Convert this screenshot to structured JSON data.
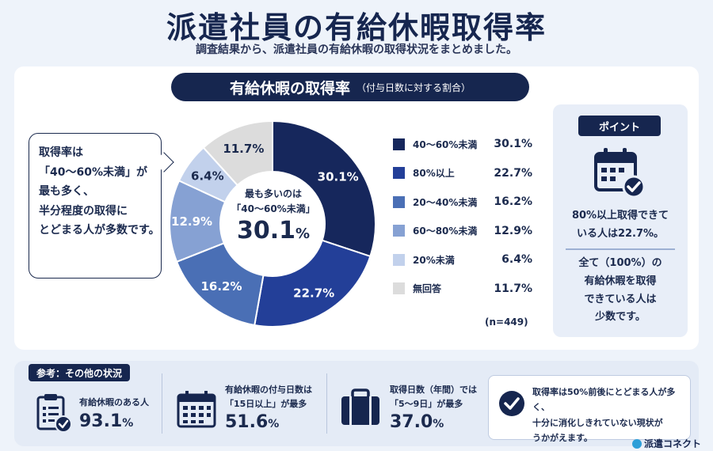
{
  "header": {
    "title": "派遣社員の有給休暇取得率",
    "subtitle": "調査結果から、派遣社員の有給休暇の取得状況をまとめました。"
  },
  "chart_header": {
    "main": "有給休暇の取得率",
    "sub": "（付与日数に対する割合）"
  },
  "bubble": {
    "lines": [
      "取得率は",
      "「40〜60%未満」が",
      "最も多く、",
      "半分程度の取得に",
      "とどまる人が多数です。"
    ]
  },
  "center": {
    "line1": "最も多いのは",
    "line2": "「40〜60%未満」",
    "value": "30.1",
    "unit": "%"
  },
  "chart_data": {
    "type": "pie",
    "donut": true,
    "categories": [
      "40〜60%未満",
      "80%以上",
      "20〜40%未満",
      "60〜80%未満",
      "20%未満",
      "無回答"
    ],
    "values": [
      30.1,
      22.7,
      16.2,
      12.9,
      6.4,
      11.7
    ],
    "labels": [
      "30.1%",
      "22.7%",
      "16.2%",
      "12.9%",
      "6.4%",
      "11.7%"
    ],
    "colors": [
      "#16275c",
      "#233f98",
      "#4a6fb5",
      "#86a1d3",
      "#c2d1ec",
      "#dcdcdc"
    ],
    "label_colors": [
      "#ffffff",
      "#ffffff",
      "#ffffff",
      "#ffffff",
      "#1b2a4e",
      "#1b2a4e"
    ],
    "legend_placement": "right",
    "note": "(n=449)"
  },
  "point": {
    "badge": "ポイント",
    "icon": "calendar-check-icon",
    "text1": [
      "80%以上取得できて",
      "いる人は22.7%。"
    ],
    "text2": [
      "全て（100%）の",
      "有給休暇を取得",
      "できている人は",
      "少数です。"
    ]
  },
  "reference": {
    "badge": "参考：その他の状況",
    "items": [
      {
        "icon": "clipboard-check-icon",
        "label": [
          "有給休暇のある人"
        ],
        "value": "93.1",
        "unit": "%"
      },
      {
        "icon": "calendar-grid-icon",
        "label": [
          "有給休暇の付与日数は",
          "「15日以上」が最多"
        ],
        "value": "51.6",
        "unit": "%"
      },
      {
        "icon": "briefcase-icon",
        "label": [
          "取得日数（年間）では",
          "「5〜9日」が最多"
        ],
        "value": "37.0",
        "unit": "%"
      }
    ],
    "conclusion": {
      "icon": "check-circle-icon",
      "lines": [
        "取得率は50%前後にとどまる人が多く、",
        "十分に消化しきれていない現状が",
        "うかがえます。"
      ]
    }
  },
  "brand": "派遣コネクト"
}
